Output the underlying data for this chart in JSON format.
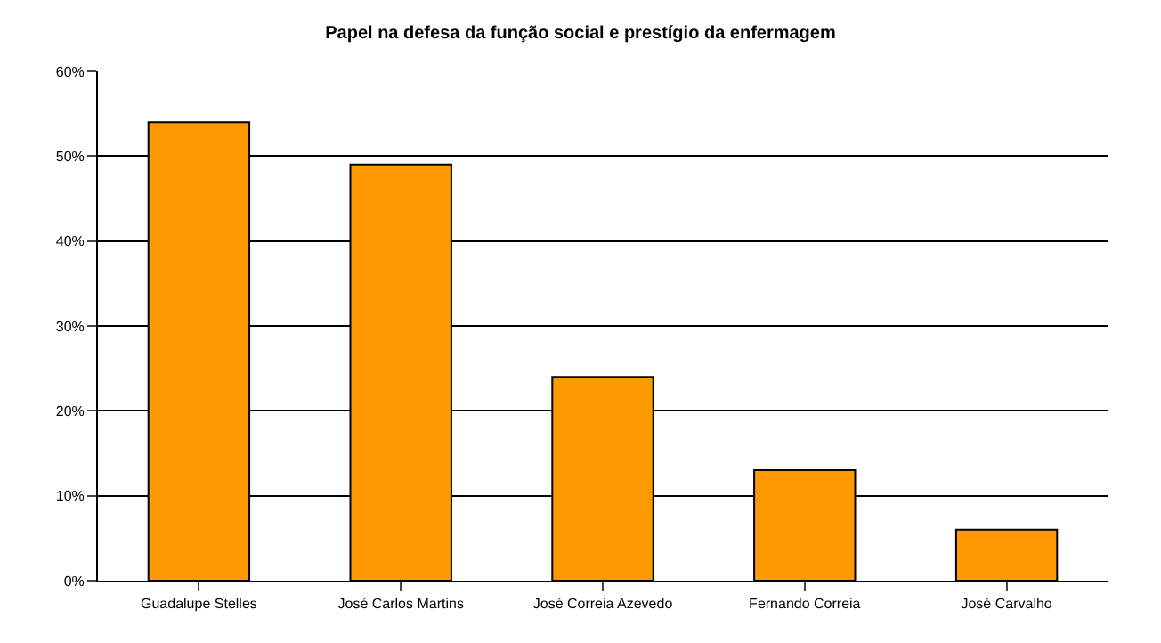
{
  "chart_data": {
    "type": "bar",
    "title": "Papel na defesa da função social e prestígio da enfermagem",
    "categories": [
      "Guadalupe Stelles",
      "José Carlos Martins",
      "José Correia Azevedo",
      "Fernando Correia",
      "José Carvalho"
    ],
    "values": [
      54,
      49,
      24,
      13,
      6
    ],
    "color": "#ff9900",
    "ylim": [
      0,
      60
    ],
    "yticks": [
      {
        "value": 0,
        "label": "0%"
      },
      {
        "value": 10,
        "label": "10%"
      },
      {
        "value": 20,
        "label": "20%"
      },
      {
        "value": 30,
        "label": "30%"
      },
      {
        "value": 40,
        "label": "40%"
      },
      {
        "value": 50,
        "label": "50%"
      },
      {
        "value": 60,
        "label": "60%"
      }
    ],
    "grid": "y",
    "legend": false
  }
}
